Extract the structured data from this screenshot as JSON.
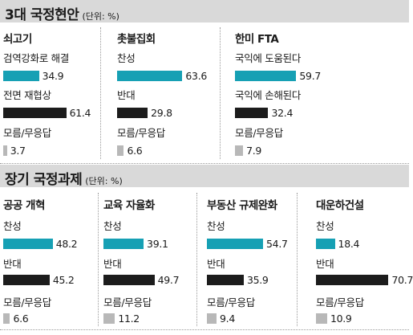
{
  "colors": {
    "agree": "#16a0b4",
    "oppose": "#1c1c1c",
    "unknown": "#b8b8b8"
  },
  "chart_data": [
    {
      "type": "bar",
      "section": "3대 국정현안",
      "unit": "(단위: %)",
      "panels": [
        {
          "title": "쇠고기",
          "rows": [
            {
              "label": "검역강화로 해결",
              "value": 34.9,
              "kind": "agree"
            },
            {
              "label": "전면 재협상",
              "value": 61.4,
              "kind": "oppose"
            },
            {
              "label": "모름/무응답",
              "value": 3.7,
              "kind": "unknown"
            }
          ]
        },
        {
          "title": "촛불집회",
          "rows": [
            {
              "label": "찬성",
              "value": 63.6,
              "kind": "agree"
            },
            {
              "label": "반대",
              "value": 29.8,
              "kind": "oppose"
            },
            {
              "label": "모름/무응답",
              "value": 6.6,
              "kind": "unknown"
            }
          ]
        },
        {
          "title": "한미 FTA",
          "rows": [
            {
              "label": "국익에 도움된다",
              "value": 59.7,
              "kind": "agree"
            },
            {
              "label": "국익에 손해된다",
              "value": 32.4,
              "kind": "oppose"
            },
            {
              "label": "모름/무응답",
              "value": 7.9,
              "kind": "unknown"
            }
          ]
        }
      ]
    },
    {
      "type": "bar",
      "section": "장기 국정과제",
      "unit": "(단위: %)",
      "panels": [
        {
          "title": "공공 개혁",
          "rows": [
            {
              "label": "찬성",
              "value": 48.2,
              "kind": "agree"
            },
            {
              "label": "반대",
              "value": 45.2,
              "kind": "oppose"
            },
            {
              "label": "모름/무응답",
              "value": 6.6,
              "kind": "unknown"
            }
          ]
        },
        {
          "title": "교육 자율화",
          "rows": [
            {
              "label": "찬성",
              "value": 39.1,
              "kind": "agree"
            },
            {
              "label": "반대",
              "value": 49.7,
              "kind": "oppose"
            },
            {
              "label": "모름/무응답",
              "value": 11.2,
              "kind": "unknown"
            }
          ]
        },
        {
          "title": "부동산 규제완화",
          "rows": [
            {
              "label": "찬성",
              "value": 54.7,
              "kind": "agree"
            },
            {
              "label": "반대",
              "value": 35.9,
              "kind": "oppose"
            },
            {
              "label": "모름/무응답",
              "value": 9.4,
              "kind": "unknown"
            }
          ]
        },
        {
          "title": "대운하건설",
          "rows": [
            {
              "label": "찬성",
              "value": 18.4,
              "kind": "agree"
            },
            {
              "label": "반대",
              "value": 70.7,
              "kind": "oppose"
            },
            {
              "label": "모름/무응답",
              "value": 10.9,
              "kind": "unknown"
            }
          ]
        }
      ]
    }
  ]
}
